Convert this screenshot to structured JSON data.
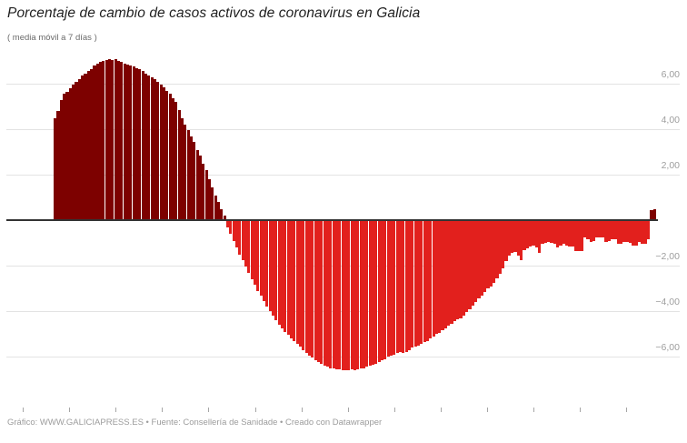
{
  "header": {
    "title": "Porcentaje de cambio de casos activos de coronavirus en Galicia",
    "subtitle": "( media móvil a 7 días )"
  },
  "footer": {
    "credit": "Gráfico: WWW.GALICIAPRESS.ES • Fuente: Consellería de Sanidade • Creado con Datawrapper"
  },
  "chart_data": {
    "type": "bar",
    "title": "Porcentaje de cambio de casos activos de coronavirus en Galicia",
    "subtitle": "( media móvil a 7 días )",
    "ylabel": "",
    "xlabel": "",
    "unit": "%",
    "ylim": [
      -7.3,
      7.4
    ],
    "grid": true,
    "y_axis": {
      "tick_values": [
        6,
        4,
        2,
        -2,
        -4,
        -6
      ],
      "tick_labels": [
        "6,00",
        "4,00",
        "2,00",
        "−2,00",
        "−4,00",
        "−6,00"
      ],
      "labels_position": "right",
      "zero_baseline": true
    },
    "x_axis": {
      "tick_count": 14,
      "labels_visible": false
    },
    "colors": {
      "positive": "#7D0100",
      "negative": "#E2201D",
      "grid": "#E3E3E3",
      "zero_line": "#333333",
      "axis_label": "#9E9E9E"
    },
    "values": [
      4.5,
      4.8,
      5.3,
      5.55,
      5.65,
      5.8,
      5.95,
      6.1,
      6.2,
      6.35,
      6.45,
      6.55,
      6.65,
      6.8,
      6.9,
      6.95,
      7.0,
      7.05,
      7.1,
      7.05,
      7.1,
      7.0,
      6.95,
      6.9,
      6.85,
      6.8,
      6.75,
      6.7,
      6.65,
      6.55,
      6.45,
      6.35,
      6.3,
      6.2,
      6.1,
      5.95,
      5.85,
      5.7,
      5.55,
      5.35,
      5.2,
      4.85,
      4.5,
      4.2,
      3.95,
      3.7,
      3.45,
      3.1,
      2.85,
      2.5,
      2.2,
      1.8,
      1.45,
      1.1,
      0.8,
      0.5,
      0.2,
      -0.3,
      -0.6,
      -0.9,
      -1.2,
      -1.5,
      -1.75,
      -2.05,
      -2.3,
      -2.6,
      -2.85,
      -3.1,
      -3.3,
      -3.55,
      -3.8,
      -4.0,
      -4.2,
      -4.4,
      -4.6,
      -4.75,
      -4.9,
      -5.05,
      -5.2,
      -5.3,
      -5.45,
      -5.55,
      -5.7,
      -5.85,
      -5.95,
      -6.05,
      -6.15,
      -6.25,
      -6.3,
      -6.4,
      -6.45,
      -6.5,
      -6.5,
      -6.55,
      -6.55,
      -6.6,
      -6.6,
      -6.6,
      -6.55,
      -6.6,
      -6.55,
      -6.5,
      -6.5,
      -6.45,
      -6.4,
      -6.35,
      -6.3,
      -6.25,
      -6.15,
      -6.1,
      -6.0,
      -5.95,
      -5.9,
      -5.85,
      -5.8,
      -5.85,
      -5.8,
      -5.7,
      -5.6,
      -5.55,
      -5.5,
      -5.45,
      -5.35,
      -5.3,
      -5.2,
      -5.1,
      -5.0,
      -4.95,
      -4.85,
      -4.75,
      -4.65,
      -4.55,
      -4.45,
      -4.35,
      -4.3,
      -4.2,
      -4.05,
      -3.9,
      -3.75,
      -3.6,
      -3.45,
      -3.3,
      -3.15,
      -3.0,
      -2.9,
      -2.75,
      -2.55,
      -2.35,
      -2.1,
      -1.8,
      -1.55,
      -1.45,
      -1.4,
      -1.55,
      -1.75,
      -1.3,
      -1.25,
      -1.15,
      -1.1,
      -1.2,
      -1.45,
      -1.05,
      -1.0,
      -0.95,
      -1.0,
      -1.05,
      -1.2,
      -1.1,
      -1.05,
      -1.1,
      -1.15,
      -1.15,
      -1.35,
      -1.35,
      -1.35,
      -0.75,
      -0.85,
      -0.95,
      -0.9,
      -0.75,
      -0.75,
      -0.75,
      -0.95,
      -0.9,
      -0.85,
      -0.85,
      -1.05,
      -1.05,
      -0.95,
      -0.95,
      -1.0,
      -1.1,
      -1.1,
      -0.95,
      -1.05,
      -1.05,
      -0.85,
      0.45,
      0.5
    ]
  }
}
